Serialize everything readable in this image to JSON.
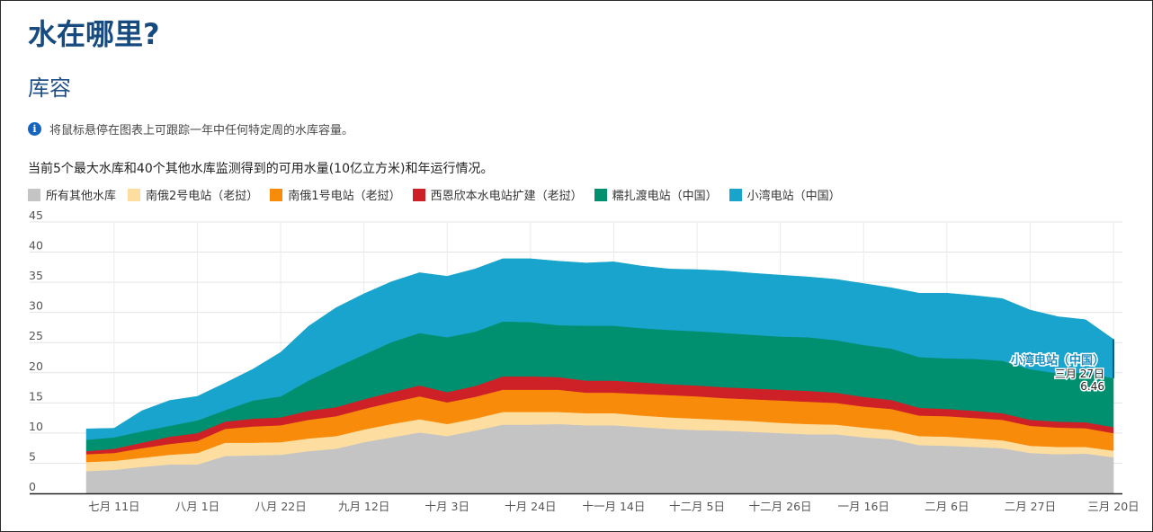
{
  "page": {
    "title": "水在哪里?",
    "section": "库容",
    "info_text": "将鼠标悬停在图表上可跟踪一年中任何特定周的水库容量。",
    "description": "当前5个最大水库和40个其他水库监测得到的可用水量(10亿立方米)和年运行情况。"
  },
  "icons": {
    "info": "info-icon"
  },
  "tooltip": {
    "series": "小湾电站（中国）",
    "date": "三月 27日",
    "value": "6.46"
  },
  "chart_data": {
    "type": "area",
    "stacked": true,
    "ylim": [
      0,
      45
    ],
    "yticks": [
      0,
      5,
      10,
      15,
      20,
      25,
      30,
      35,
      40,
      45
    ],
    "xtick_labels": [
      "七月 11日",
      "八月 1日",
      "八月 22日",
      "九月 12日",
      "十月 3日",
      "十月 24日",
      "十一月 14日",
      "十二月 5日",
      "十二月 26日",
      "一月 16日",
      "二月 6日",
      "二月 27日",
      "三月 20日"
    ],
    "x_weeks": [
      0,
      1,
      2,
      3,
      4,
      5,
      6,
      7,
      8,
      9,
      10,
      11,
      12,
      13,
      14,
      15,
      16,
      17,
      18,
      19,
      20,
      21,
      22,
      23,
      24,
      25,
      26,
      27,
      28,
      29,
      30,
      31,
      32,
      33,
      34,
      35,
      36,
      37
    ],
    "series": [
      {
        "name": "所有其他水库",
        "color": "#c4c4c4",
        "values": [
          3.7,
          3.9,
          4.4,
          4.8,
          4.8,
          6.2,
          6.3,
          6.4,
          7.0,
          7.4,
          8.5,
          9.3,
          10.1,
          9.5,
          10.4,
          11.4,
          11.4,
          11.5,
          11.3,
          11.3,
          11.0,
          10.7,
          10.5,
          10.4,
          10.2,
          10.0,
          9.8,
          9.8,
          9.3,
          9.0,
          8.0,
          7.9,
          7.7,
          7.5,
          6.7,
          6.5,
          6.6,
          6.0
        ]
      },
      {
        "name": "南俄2号电站（老挝）",
        "color": "#fddea0",
        "values": [
          1.5,
          1.5,
          1.5,
          1.6,
          1.9,
          2.2,
          2.1,
          2.1,
          2.1,
          2.1,
          2.1,
          2.2,
          2.2,
          2.0,
          2.0,
          2.1,
          2.1,
          2.0,
          2.0,
          2.0,
          1.9,
          1.9,
          1.9,
          1.8,
          1.8,
          1.7,
          1.7,
          1.6,
          1.6,
          1.5,
          1.5,
          1.5,
          1.4,
          1.3,
          1.2,
          1.2,
          1.1,
          1.1
        ]
      },
      {
        "name": "南俄1号电站（老挝）",
        "color": "#f98b0a",
        "values": [
          1.3,
          1.3,
          1.6,
          1.8,
          2.0,
          2.3,
          2.7,
          2.8,
          3.1,
          3.3,
          3.4,
          3.6,
          3.8,
          3.6,
          3.6,
          3.7,
          3.7,
          3.7,
          3.4,
          3.4,
          3.6,
          3.7,
          3.7,
          3.6,
          3.6,
          3.7,
          3.7,
          3.6,
          3.5,
          3.5,
          3.4,
          3.4,
          3.4,
          3.4,
          3.3,
          3.2,
          3.1,
          2.9
        ]
      },
      {
        "name": "西恩欣本水电站扩建（老挝）",
        "color": "#cd2127",
        "values": [
          0.5,
          0.7,
          0.9,
          1.2,
          1.3,
          1.2,
          1.3,
          1.3,
          1.5,
          1.5,
          1.6,
          1.7,
          1.8,
          1.7,
          1.8,
          2.2,
          2.2,
          2.1,
          2.0,
          2.0,
          1.9,
          1.8,
          1.8,
          1.8,
          1.8,
          1.8,
          1.8,
          1.7,
          1.6,
          1.5,
          1.3,
          1.2,
          1.2,
          1.1,
          1.0,
          1.0,
          1.0,
          1.0
        ]
      },
      {
        "name": "糯扎渡电站（中国）",
        "color": "#00906f",
        "values": [
          1.9,
          1.9,
          1.9,
          1.8,
          2.1,
          1.9,
          3.0,
          3.5,
          5.0,
          6.6,
          7.4,
          8.3,
          8.7,
          9.1,
          9.0,
          9.1,
          9.0,
          8.6,
          9.1,
          9.1,
          9.0,
          9.0,
          9.0,
          9.0,
          8.9,
          8.8,
          8.9,
          8.7,
          8.6,
          8.5,
          8.4,
          8.4,
          8.6,
          8.7,
          8.4,
          8.0,
          8.2,
          8.1
        ]
      },
      {
        "name": "小湾电站（中国）",
        "color": "#18a4cd",
        "values": [
          1.8,
          1.5,
          3.4,
          4.2,
          4.0,
          4.5,
          5.2,
          7.3,
          9.0,
          9.9,
          10.1,
          10.0,
          10.0,
          10.1,
          10.4,
          10.4,
          10.5,
          10.6,
          10.4,
          10.6,
          10.3,
          10.1,
          10.2,
          10.3,
          10.2,
          10.2,
          10.0,
          10.1,
          10.2,
          10.1,
          10.6,
          10.8,
          10.5,
          10.3,
          9.8,
          9.4,
          8.8,
          6.46
        ]
      }
    ]
  }
}
